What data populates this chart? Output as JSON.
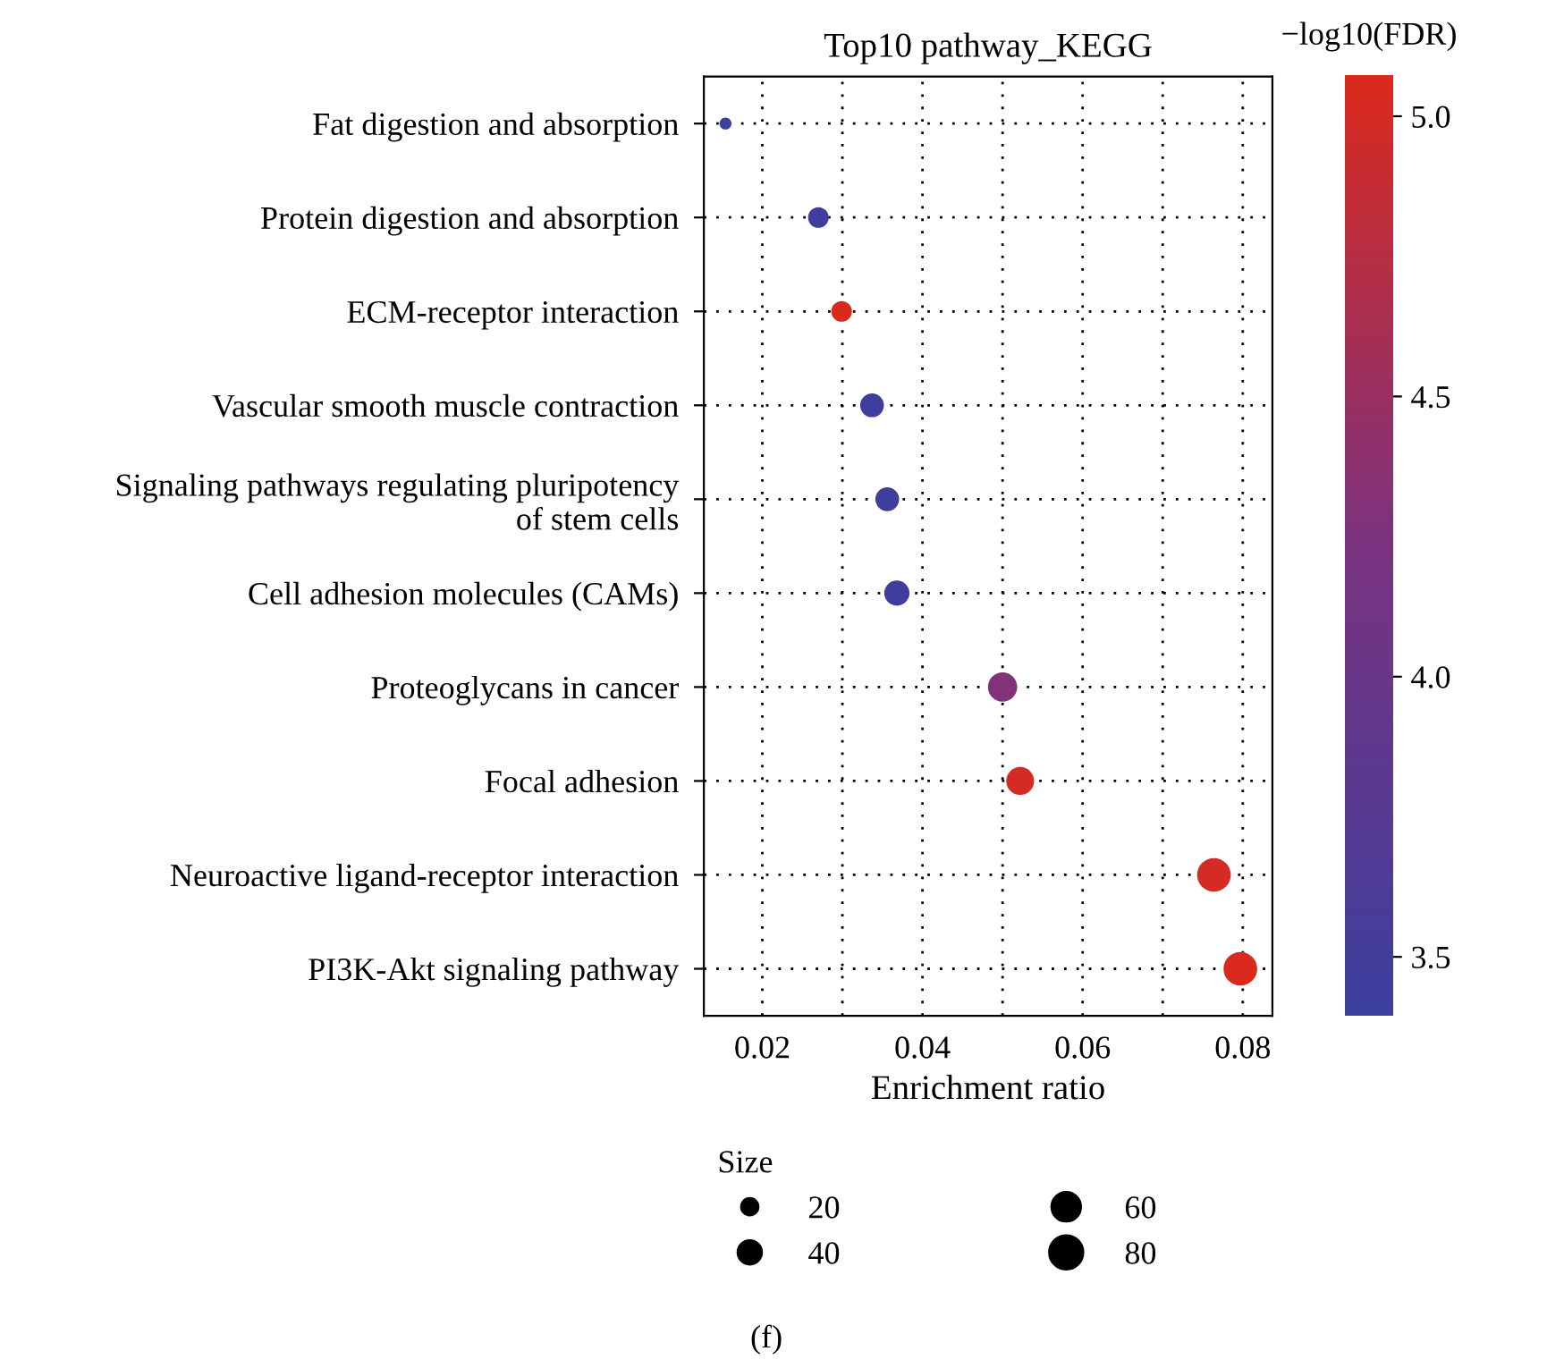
{
  "chart_data": {
    "type": "bubble",
    "title": "Top10 pathway_KEGG",
    "xlabel": "Enrichment ratio",
    "clabel": "−log10(FDR)",
    "legend_title": "Size",
    "categories": [
      "Fat digestion and absorption",
      "Protein digestion and absorption",
      "ECM-receptor interaction",
      "Vascular smooth muscle contraction",
      "Signaling pathways regulating pluripotency\nof stem cells",
      "Cell adhesion molecules (CAMs)",
      "Proteoglycans in cancer",
      "Focal adhesion",
      "Neuroactive ligand-receptor interaction",
      "PI3K-Akt signaling pathway"
    ],
    "values": [
      0.0154,
      0.027,
      0.0299,
      0.0337,
      0.0356,
      0.0368,
      0.05,
      0.0522,
      0.0764,
      0.0797
    ],
    "sizes": [
      10,
      30,
      30,
      40,
      40,
      45,
      60,
      55,
      80,
      80
    ],
    "cvalues": [
      3.4,
      3.45,
      5.05,
      3.45,
      3.45,
      3.45,
      4.3,
      5.0,
      5.0,
      5.05
    ],
    "orientation": "horizontal",
    "size_legend": [
      20,
      40,
      60,
      80
    ],
    "xlim": [
      0.0127,
      0.0837
    ],
    "xticks": [
      0.02,
      {
        "value": 0.03,
        "label": null
      },
      0.04,
      {
        "value": 0.05,
        "label": null
      },
      0.06,
      {
        "value": 0.07,
        "label": null
      },
      0.08
    ],
    "clim": [
      3.395,
      5.075
    ],
    "cticks": [
      3.5,
      {
        "value": 4,
        "label": "4.0"
      },
      4.5,
      {
        "value": 5,
        "label": "5.0"
      }
    ],
    "grid": true,
    "annotations": [
      "(f)"
    ]
  }
}
